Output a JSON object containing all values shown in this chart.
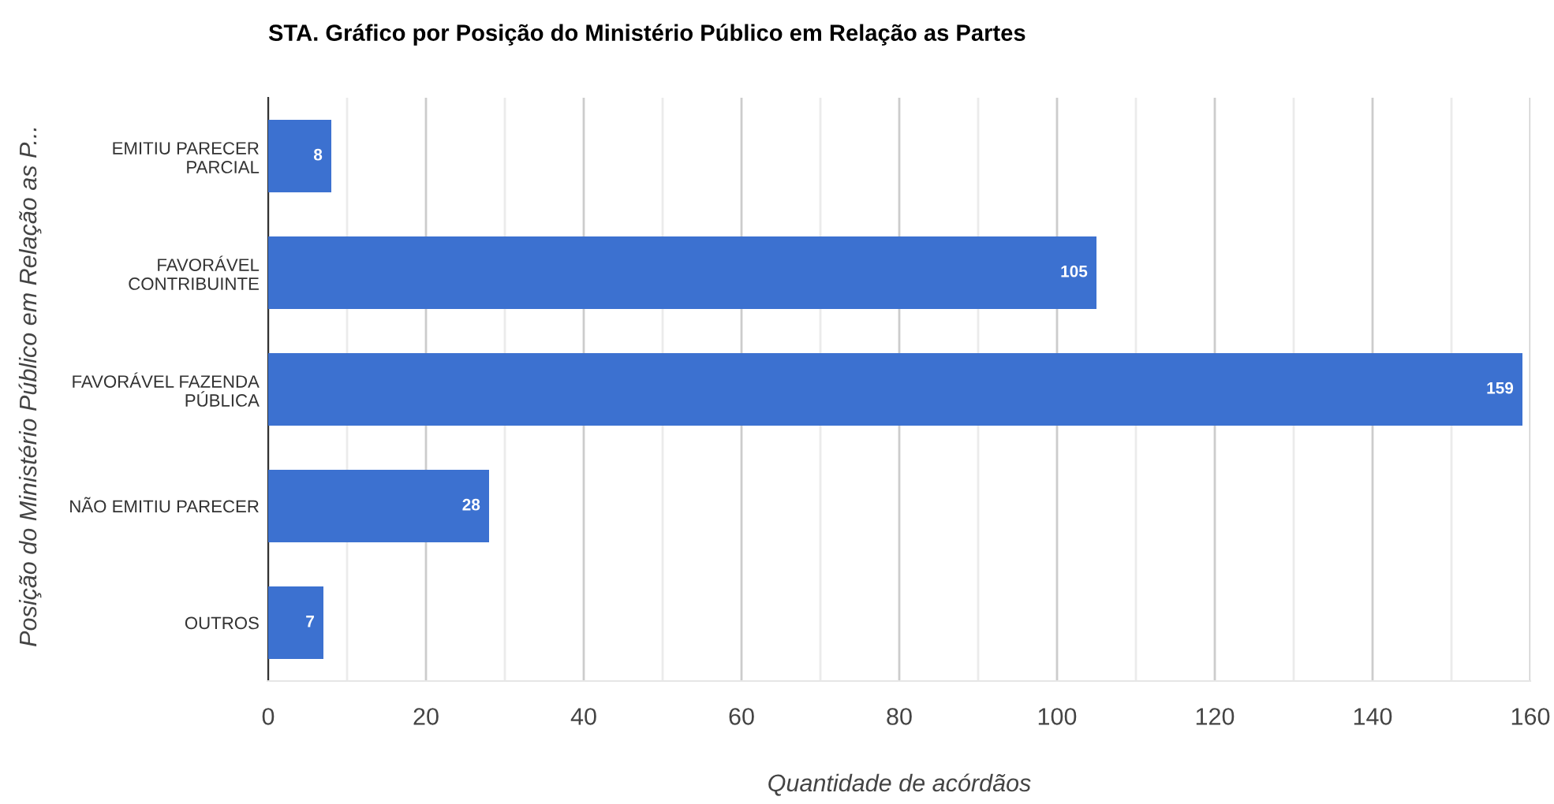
{
  "chart_data": {
    "type": "bar",
    "orientation": "horizontal",
    "title": "STA. Gráfico por Posição do Ministério Público em Relação as Partes",
    "xlabel": "Quantidade de acórdãos",
    "ylabel": "Posição do Ministério Público em Relação as P...",
    "categories": [
      "EMITIU PARECER\nPARCIAL",
      "FAVORÁVEL\nCONTRIBUINTE",
      "FAVORÁVEL FAZENDA\nPÚBLICA",
      "NÃO EMITIU PARECER",
      "OUTROS"
    ],
    "values": [
      8,
      105,
      159,
      28,
      7
    ],
    "color": "#3c71d0",
    "data_labels": true,
    "xlim": [
      0,
      160
    ],
    "xticks": [
      0,
      {
        "value": 10,
        "label": null
      },
      20,
      {
        "value": 30,
        "label": null
      },
      40,
      {
        "value": 50,
        "label": null
      },
      60,
      {
        "value": 70,
        "label": null
      },
      80,
      {
        "value": 90,
        "label": null
      },
      100,
      {
        "value": 110,
        "label": null
      },
      120,
      {
        "value": 130,
        "label": null
      },
      140,
      {
        "value": 150,
        "label": null
      },
      160
    ],
    "grid": "x",
    "legend": false
  }
}
